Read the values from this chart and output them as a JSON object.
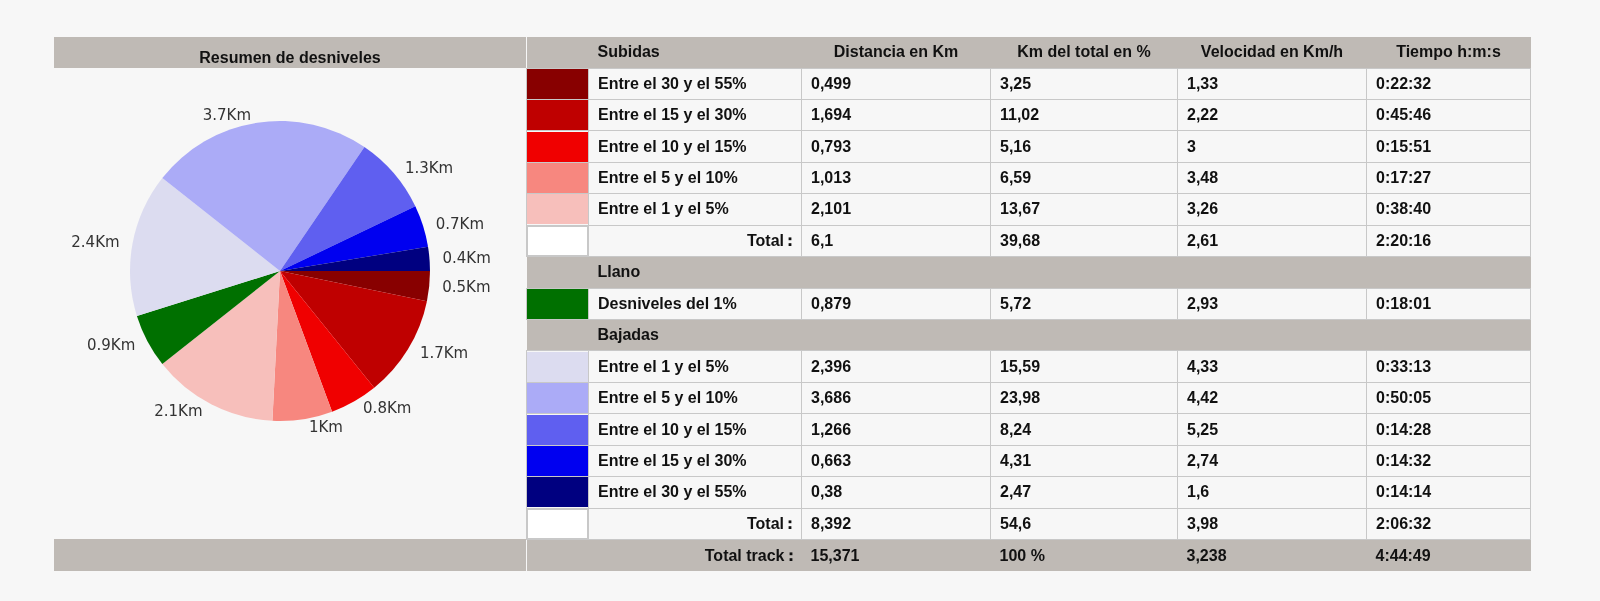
{
  "chart_data": [
    {
      "type": "pie",
      "title": "Resumen de desniveles",
      "categories": [
        null,
        null,
        null,
        null,
        null,
        null,
        null,
        null,
        null,
        null,
        null
      ],
      "values": [
        0.5,
        1.7,
        0.8,
        1,
        2.1,
        0.9,
        2.4,
        3.7,
        1.3,
        0.7,
        0.4
      ],
      "colors": [
        "#880000",
        "#bf0000",
        "#f00000",
        "#f7877f",
        "#f7bfbb",
        "#007000",
        "#dcdcf0",
        "#ababf7",
        "#5f5ff0",
        "#0000f0",
        "#000080"
      ],
      "value_labels": [
        "0.5Km",
        "1.7Km",
        "0.8Km",
        "1Km",
        "2.1Km",
        "0.9Km",
        "2.4Km",
        "3.7Km",
        "1.3Km",
        "0.7Km",
        "0.4Km"
      ]
    },
    {
      "type": "other",
      "ylabel": "Subidas",
      "categories": [
        "Entre el 30 y el 55%",
        "Entre el 15 y el 30%",
        "Entre el 10 y el 15%",
        "Entre el 5 y el 10%",
        "Entre el 1 y el 5%",
        "Total",
        "Llano",
        "Desniveles del 1%",
        "Bajadas",
        "Entre el 1 y el 5%",
        "Entre el 5 y el 10%",
        "Entre el 10 y el 15%",
        "Entre el 15 y el 30%",
        "Entre el 30 y el 55%",
        "Total",
        "Total track"
      ],
      "colors": [
        "#880000",
        "#bf0000",
        "#f00000",
        "#f7877f",
        "#f7bfbb",
        null,
        null,
        "#007000",
        null,
        "#dcdcf0",
        "#ababf7",
        "#5f5ff0",
        "#0000f0",
        "#000080",
        null,
        null
      ],
      "series": [
        {
          "name": "Distancia en Km",
          "colors": [
            "#f7f7f7",
            "#f7f7f7",
            "#f7f7f7",
            "#f7f7f7",
            "#f7f7f7",
            "#f7f7f7",
            null,
            "#f7f7f7",
            null,
            "#f7f7f7",
            "#f7f7f7",
            "#f7f7f7",
            "#f7f7f7",
            "#f7f7f7",
            "#f7f7f7",
            "#bfbab5"
          ],
          "values": [
            0.499,
            1.694,
            0.793,
            1.013,
            2.101,
            6.1,
            null,
            0.879,
            null,
            2.396,
            3.686,
            1.266,
            0.663,
            0.38,
            8.392,
            15.371
          ],
          "value_labels": [
            "0,499",
            "1,694",
            "0,793",
            "1,013",
            "2,101",
            "6,1",
            null,
            "0,879",
            null,
            "2,396",
            "3,686",
            "1,266",
            "0,663",
            "0,38",
            "8,392",
            "15,371"
          ]
        },
        {
          "name": "Km del total en %",
          "colors": [
            "#f7f7f7",
            "#f7f7f7",
            "#f7f7f7",
            "#f7f7f7",
            "#f7f7f7",
            "#f7f7f7",
            null,
            "#f7f7f7",
            null,
            "#f7f7f7",
            "#f7f7f7",
            "#f7f7f7",
            "#f7f7f7",
            "#f7f7f7",
            "#f7f7f7",
            "#bfbab5"
          ],
          "values": [
            3.25,
            11.02,
            5.16,
            6.59,
            13.67,
            39.68,
            null,
            5.72,
            null,
            15.59,
            23.98,
            8.24,
            4.31,
            2.47,
            54.6,
            100
          ],
          "value_labels": [
            "3,25",
            "11,02",
            "5,16",
            "6,59",
            "13,67",
            "39,68",
            null,
            "5,72",
            null,
            "15,59",
            "23,98",
            "8,24",
            "4,31",
            "2,47",
            "54,6",
            "100 %"
          ]
        },
        {
          "name": "Velocidad en Km/h",
          "colors": [
            "#f7f7f7",
            "#f7f7f7",
            "#f7f7f7",
            "#f7f7f7",
            "#f7f7f7",
            "#f7f7f7",
            null,
            "#f7f7f7",
            null,
            "#f7f7f7",
            "#f7f7f7",
            "#f7f7f7",
            "#f7f7f7",
            "#f7f7f7",
            "#f7f7f7",
            "#bfbab5"
          ],
          "values": [
            1.33,
            2.22,
            3,
            3.48,
            3.26,
            2.61,
            null,
            2.93,
            null,
            4.33,
            4.42,
            5.25,
            2.74,
            1.6,
            3.98,
            3.238
          ],
          "value_labels": [
            "1,33",
            "2,22",
            "3",
            "3,48",
            "3,26",
            "2,61",
            null,
            "2,93",
            null,
            "4,33",
            "4,42",
            "5,25",
            "2,74",
            "1,6",
            "3,98",
            "3,238"
          ]
        },
        {
          "name": "Tiempo h:m:s",
          "colors": [
            "#f7f7f7",
            "#f7f7f7",
            "#f7f7f7",
            "#f7f7f7",
            "#f7f7f7",
            "#f7f7f7",
            null,
            "#f7f7f7",
            null,
            "#f7f7f7",
            "#f7f7f7",
            "#f7f7f7",
            "#f7f7f7",
            "#f7f7f7",
            "#f7f7f7",
            "#bfbab5"
          ],
          "values": [
            0.375556,
            0.762778,
            0.264167,
            0.290833,
            0.644444,
            2.337778,
            null,
            0.300278,
            null,
            0.553611,
            0.834722,
            0.241111,
            0.242222,
            0.237222,
            2.108889,
            4.746944
          ],
          "value_labels": [
            "0:22:32",
            "0:45:46",
            "0:15:51",
            "0:17:27",
            "0:38:40",
            "2:20:16",
            null,
            "0:18:01",
            null,
            "0:33:13",
            "0:50:05",
            "0:14:28",
            "0:14:32",
            "0:14:14",
            "2:06:32",
            "4:44:49"
          ]
        }
      ]
    }
  ]
}
